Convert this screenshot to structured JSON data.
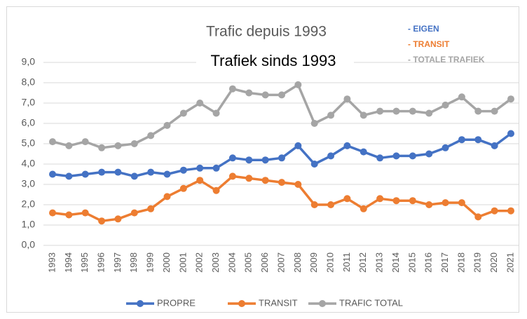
{
  "chart_data": {
    "type": "line",
    "title": "Trafic depuis 1993",
    "categories": [
      "1993",
      "1994",
      "1995",
      "1996",
      "1997",
      "1998",
      "1999",
      "2000",
      "2001",
      "2002",
      "2003",
      "2004",
      "2005",
      "2006",
      "2007",
      "2008",
      "2009",
      "2010",
      "2011",
      "2012",
      "2013",
      "2014",
      "2015",
      "2016",
      "2017",
      "2018",
      "2019",
      "2020",
      "2021"
    ],
    "series": [
      {
        "name": "PROPRE",
        "color": "#4472c4",
        "values": [
          3.5,
          3.4,
          3.5,
          3.6,
          3.6,
          3.4,
          3.6,
          3.5,
          3.7,
          3.8,
          3.8,
          4.3,
          4.2,
          4.2,
          4.3,
          4.9,
          4.0,
          4.4,
          4.9,
          4.6,
          4.3,
          4.4,
          4.4,
          4.5,
          4.8,
          5.2,
          5.2,
          4.9,
          5.5
        ]
      },
      {
        "name": "TRANSIT",
        "color": "#ed7d31",
        "values": [
          1.6,
          1.5,
          1.6,
          1.2,
          1.3,
          1.6,
          1.8,
          2.4,
          2.8,
          3.2,
          2.7,
          3.4,
          3.3,
          3.2,
          3.1,
          3.0,
          2.0,
          2.0,
          2.3,
          1.8,
          2.3,
          2.2,
          2.2,
          2.0,
          2.1,
          2.1,
          1.4,
          1.7,
          1.7
        ]
      },
      {
        "name": "TRAFIC TOTAL",
        "color": "#a5a5a5",
        "values": [
          5.1,
          4.9,
          5.1,
          4.8,
          4.9,
          5.0,
          5.4,
          5.9,
          6.5,
          7.0,
          6.5,
          7.7,
          7.5,
          7.4,
          7.4,
          7.9,
          6.0,
          6.4,
          7.2,
          6.4,
          6.6,
          6.6,
          6.6,
          6.5,
          6.9,
          7.3,
          6.6,
          6.6,
          7.2
        ]
      }
    ],
    "ylim": [
      0,
      9
    ],
    "yticks": [
      {
        "value": 0,
        "label": "0,0"
      },
      {
        "value": 1,
        "label": "1,0"
      },
      {
        "value": 2,
        "label": "2,0"
      },
      {
        "value": 3,
        "label": "3,0"
      },
      {
        "value": 4,
        "label": "4,0"
      },
      {
        "value": 5,
        "label": "5,0"
      },
      {
        "value": 6,
        "label": "6,0"
      },
      {
        "value": 7,
        "label": "7,0"
      },
      {
        "value": 8,
        "label": "8,0"
      },
      {
        "value": 9,
        "label": "9,0"
      }
    ],
    "grid": true,
    "annotations": [
      {
        "text": "Trafiek sinds 1993",
        "color": "#000000"
      },
      {
        "text": "- EIGEN",
        "color": "#4472c4"
      },
      {
        "text": "- TRANSIT",
        "color": "#ed7d31"
      },
      {
        "text": "- TOTALE TRAFIEK",
        "color": "#a5a5a5"
      }
    ]
  }
}
